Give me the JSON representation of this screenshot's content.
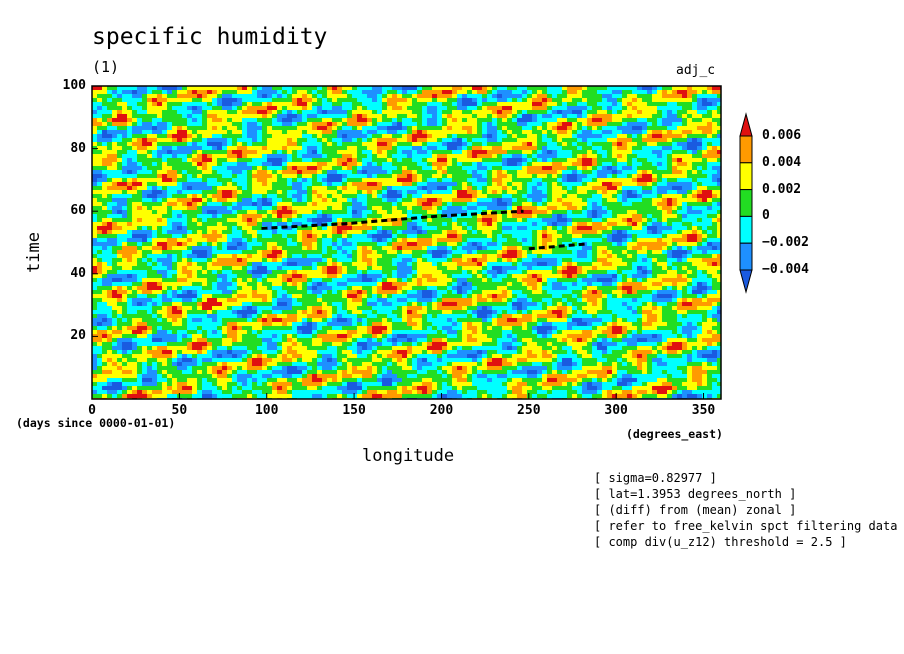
{
  "chart_data": {
    "type": "heatmap",
    "title": "specific humidity",
    "subtitle": "(1)",
    "run_label": "adj_c",
    "xlabel": "longitude",
    "ylabel": "time",
    "x_unit": "(degrees_east)",
    "y_unit": "(days since 0000-01-01)",
    "xlim": [
      0,
      360
    ],
    "ylim": [
      0,
      100
    ],
    "x_ticks": [
      0,
      50,
      100,
      150,
      200,
      250,
      300,
      350
    ],
    "y_ticks": [
      20,
      40,
      60,
      80,
      100
    ],
    "colorbar": {
      "levels": [
        "0.006",
        "0.004",
        "0.002",
        "0",
        "−0.002",
        "−0.004"
      ],
      "colors": [
        "#e01010",
        "#ff9a00",
        "#ffff00",
        "#22dd22",
        "#00ffff",
        "#1e90ff",
        "#1a5ae0"
      ]
    },
    "tracked_lines": [
      {
        "points": [
          [
            97,
            54.5
          ],
          [
            145,
            56
          ],
          [
            200,
            58.5
          ],
          [
            247,
            60
          ]
        ]
      },
      {
        "points": [
          [
            250,
            48
          ],
          [
            282,
            49.5
          ]
        ]
      }
    ],
    "notes": [
      "[ sigma=0.82977 ]",
      "[ lat=1.3953 degrees_north ]",
      "[ (diff) from (mean) zonal ]",
      "[ refer to free_kelvin spct filtering data ]",
      "[ comp div(u_z12) threshold = 2.5 ]"
    ]
  }
}
